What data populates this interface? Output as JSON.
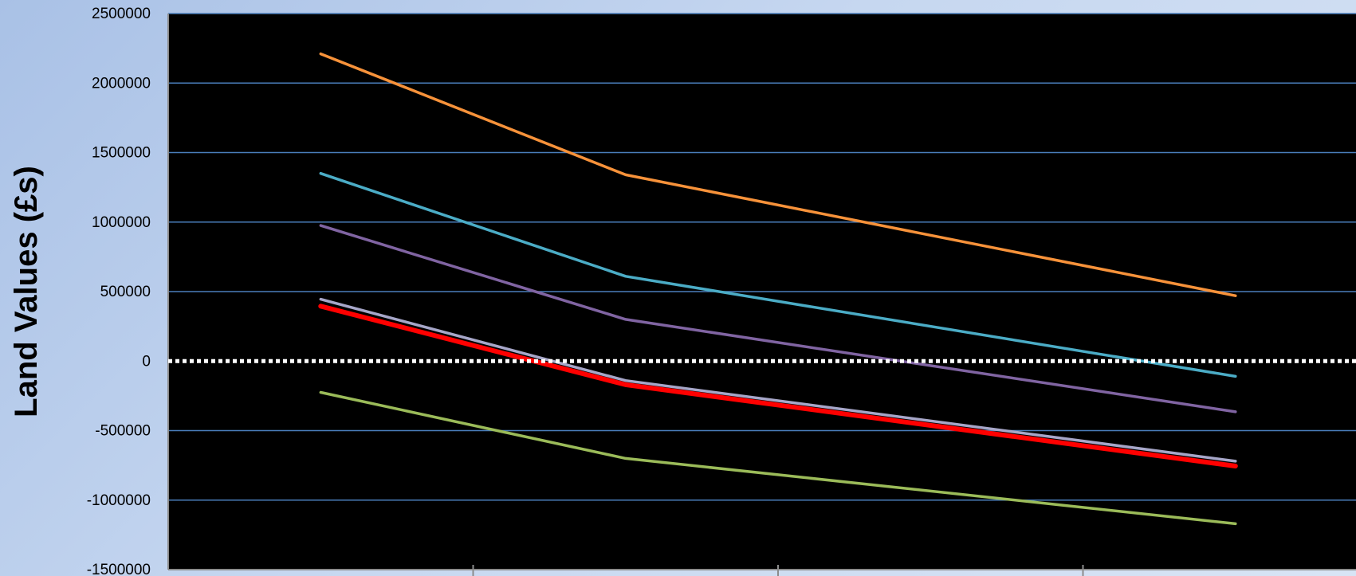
{
  "chart_data": {
    "type": "line",
    "title": "",
    "xlabel": "",
    "ylabel": "Land Values (£s)",
    "ylim": [
      -1500000,
      2500000
    ],
    "yticks": [
      2500000,
      2000000,
      1500000,
      1000000,
      500000,
      0,
      -500000,
      -1000000,
      -1500000
    ],
    "y_tick_labels": [
      "2500000",
      "2000000",
      "1500000",
      "1000000",
      "500000",
      "0",
      "-500000",
      "-1000000",
      "-1500000"
    ],
    "x": [
      1,
      2,
      3,
      4
    ],
    "xlim": [
      0.5,
      4.5
    ],
    "grid": true,
    "plot_background": "#000000",
    "zero_line_color": "#ffffff",
    "series": [
      {
        "color": "#f7923a",
        "values": [
          2210000,
          1340000,
          null,
          470000
        ]
      },
      {
        "color": "#4bacc6",
        "values": [
          1350000,
          610000,
          null,
          -110000
        ]
      },
      {
        "color": "#8064a2",
        "values": [
          975000,
          300000,
          null,
          -365000
        ]
      },
      {
        "color": "#a6a6c8",
        "values": [
          445000,
          -140000,
          null,
          -720000
        ]
      },
      {
        "color": "#ff0000",
        "values": [
          395000,
          -170000,
          null,
          -755000
        ]
      },
      {
        "color": "#9bbb59",
        "values": [
          -225000,
          -700000,
          null,
          -1170000
        ]
      }
    ]
  }
}
